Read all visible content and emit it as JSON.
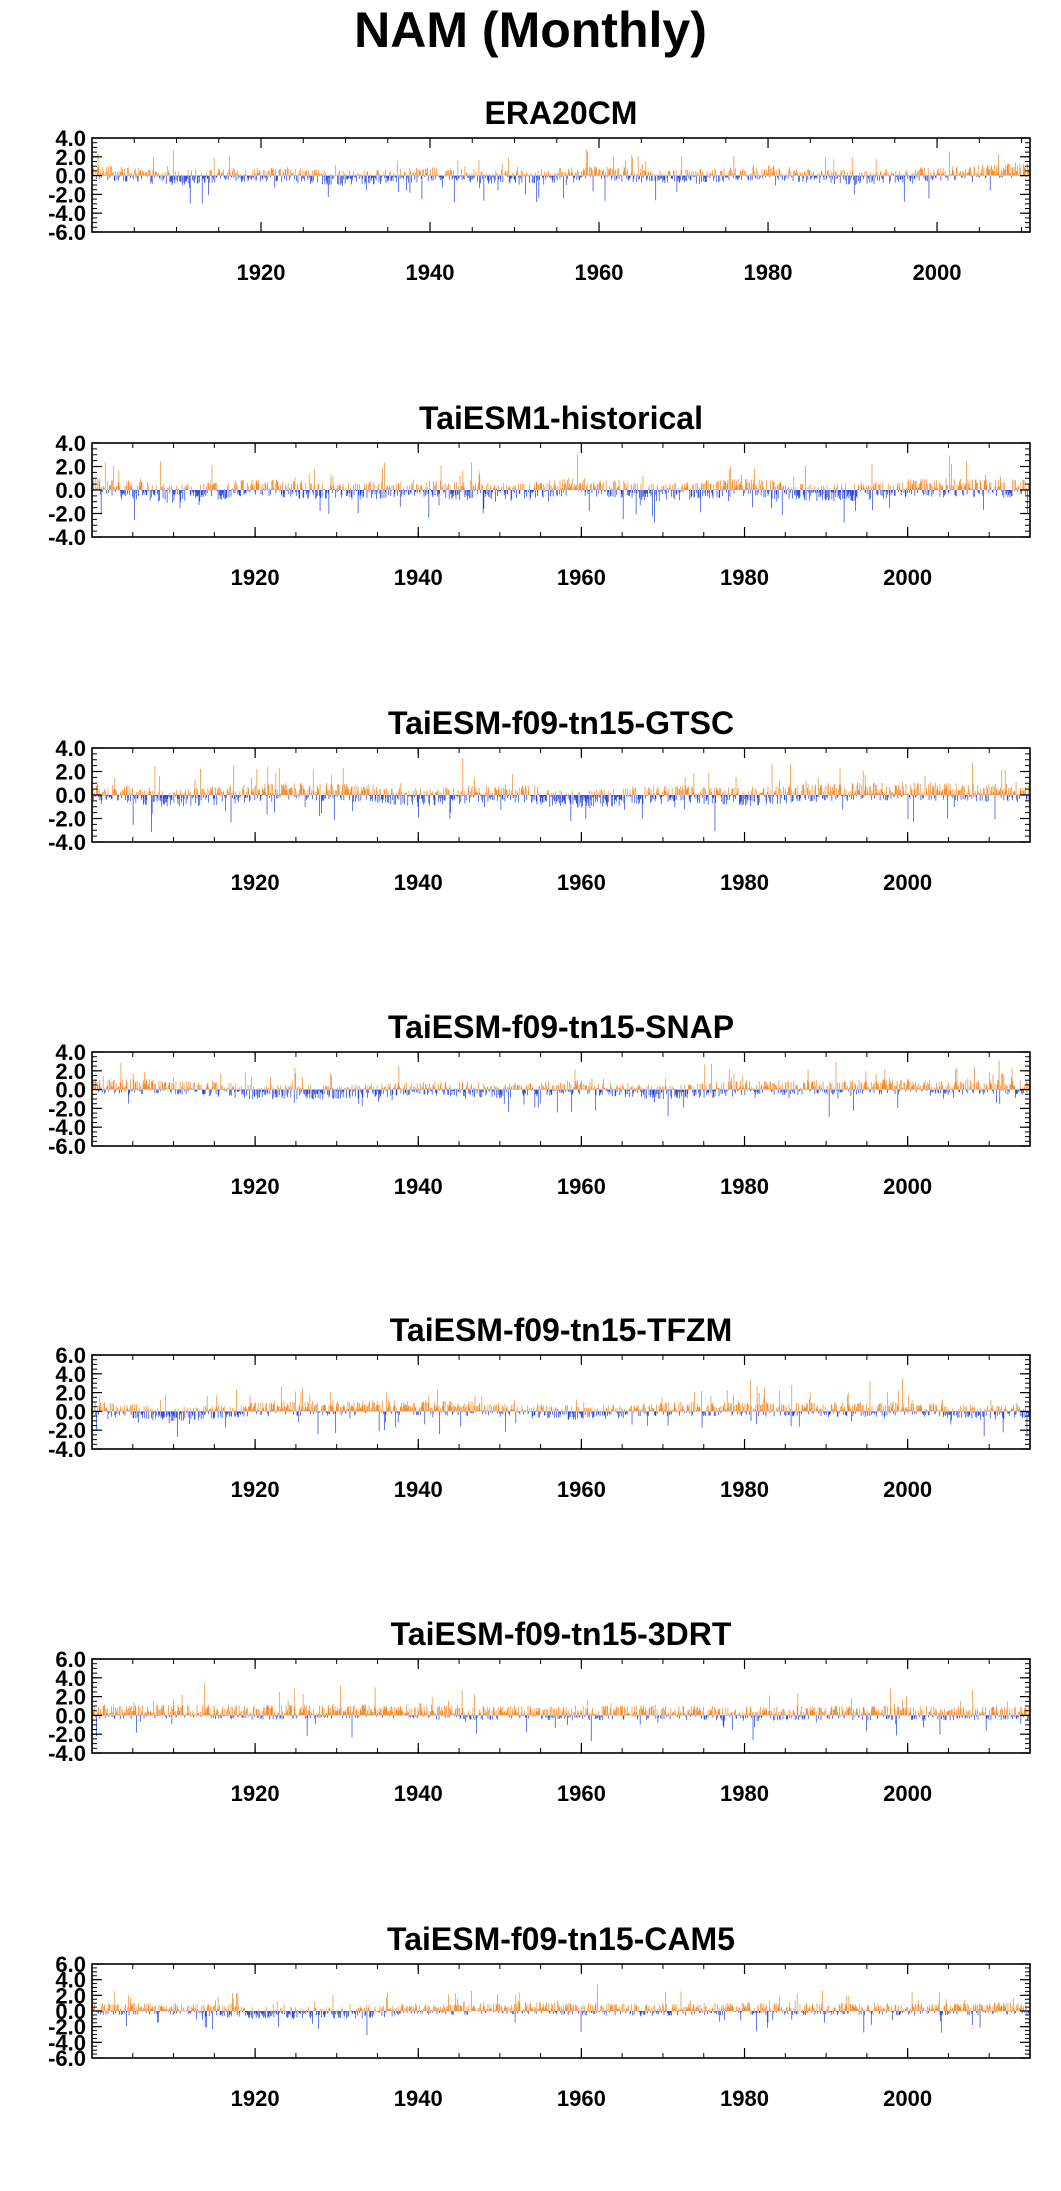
{
  "title": "NAM (Monthly)",
  "colors": {
    "positive": "#f5831f",
    "negative": "#1f3fdc",
    "frame": "#000000",
    "background": "#ffffff"
  },
  "chart_data": [
    {
      "type": "bar",
      "title": "ERA20CM",
      "xlim": [
        1900,
        2011
      ],
      "ylim": [
        -6,
        4
      ],
      "yticks": [
        "4.0",
        "2.0",
        "0.0",
        "-2.0",
        "-4.0",
        "-6.0"
      ],
      "xticks": [
        "1920",
        "1940",
        "1960",
        "1980",
        "2000"
      ],
      "series": [
        {
          "x": [
            1900,
            1910,
            1920,
            1930,
            1940,
            1950,
            1960,
            1970,
            1980,
            1990,
            2000,
            2010
          ],
          "values": [
            0.6,
            -0.4,
            0.3,
            -0.5,
            0.2,
            -0.3,
            0.4,
            -0.2,
            0.5,
            -0.4,
            0.3,
            1.0
          ]
        }
      ]
    },
    {
      "type": "bar",
      "title": "TaiESM1-historical",
      "xlim": [
        1900,
        2015
      ],
      "ylim": [
        -4,
        4
      ],
      "yticks": [
        "4.0",
        "2.0",
        "0.0",
        "-2.0",
        "-4.0"
      ],
      "xticks": [
        "1920",
        "1940",
        "1960",
        "1980",
        "2000"
      ],
      "series": [
        {
          "x": [
            1900,
            1910,
            1920,
            1930,
            1940,
            1950,
            1960,
            1970,
            1980,
            1990,
            2000,
            2010
          ],
          "values": [
            0.5,
            -0.6,
            0.4,
            -0.3,
            0.2,
            -0.4,
            0.5,
            -0.3,
            0.4,
            -0.5,
            0.3,
            0.2
          ]
        }
      ]
    },
    {
      "type": "bar",
      "title": "TaiESM-f09-tn15-GTSC",
      "xlim": [
        1900,
        2015
      ],
      "ylim": [
        -4,
        4
      ],
      "yticks": [
        "4.0",
        "2.0",
        "0.0",
        "-2.0",
        "-4.0"
      ],
      "xticks": [
        "1920",
        "1940",
        "1960",
        "1980",
        "2000"
      ],
      "series": [
        {
          "x": [
            1900,
            1910,
            1920,
            1930,
            1940,
            1950,
            1960,
            1970,
            1980,
            1990,
            2000,
            2010
          ],
          "values": [
            0.4,
            -0.5,
            0.3,
            0.5,
            -0.3,
            0.4,
            -0.6,
            0.2,
            -0.3,
            0.4,
            0.6,
            0.3
          ]
        }
      ]
    },
    {
      "type": "bar",
      "title": "TaiESM-f09-tn15-SNAP",
      "xlim": [
        1900,
        2015
      ],
      "ylim": [
        -6,
        4
      ],
      "yticks": [
        "4.0",
        "2.0",
        "0.0",
        "-2.0",
        "-4.0",
        "-6.0"
      ],
      "xticks": [
        "1920",
        "1940",
        "1960",
        "1980",
        "2000"
      ],
      "series": [
        {
          "x": [
            1900,
            1910,
            1920,
            1930,
            1940,
            1950,
            1960,
            1970,
            1980,
            1990,
            2000,
            2010
          ],
          "values": [
            0.6,
            0.5,
            -0.4,
            -0.5,
            0.3,
            -0.2,
            0.4,
            -0.5,
            0.3,
            0.4,
            0.5,
            0.4
          ]
        }
      ]
    },
    {
      "type": "bar",
      "title": "TaiESM-f09-tn15-TFZM",
      "xlim": [
        1900,
        2015
      ],
      "ylim": [
        -4,
        6
      ],
      "yticks": [
        "6.0",
        "4.0",
        "2.0",
        "0.0",
        "-2.0",
        "-4.0"
      ],
      "xticks": [
        "1920",
        "1940",
        "1960",
        "1980",
        "2000"
      ],
      "series": [
        {
          "x": [
            1900,
            1910,
            1920,
            1930,
            1940,
            1950,
            1960,
            1970,
            1980,
            1990,
            2000,
            2010
          ],
          "values": [
            0.5,
            -0.5,
            0.4,
            0.6,
            0.7,
            0.3,
            -0.3,
            0.4,
            0.5,
            0.3,
            0.4,
            -0.2
          ]
        }
      ]
    },
    {
      "type": "bar",
      "title": "TaiESM-f09-tn15-3DRT",
      "xlim": [
        1900,
        2015
      ],
      "ylim": [
        -4,
        6
      ],
      "yticks": [
        "6.0",
        "4.0",
        "2.0",
        "0.0",
        "-2.0",
        "-4.0"
      ],
      "xticks": [
        "1920",
        "1940",
        "1960",
        "1980",
        "2000"
      ],
      "series": [
        {
          "x": [
            1900,
            1910,
            1920,
            1930,
            1940,
            1950,
            1960,
            1970,
            1980,
            1990,
            2000,
            2010
          ],
          "values": [
            0.6,
            0.7,
            0.5,
            0.8,
            0.6,
            0.5,
            0.4,
            0.6,
            0.3,
            0.5,
            0.4,
            0.4
          ]
        }
      ]
    },
    {
      "type": "bar",
      "title": "TaiESM-f09-tn15-CAM5",
      "xlim": [
        1900,
        2015
      ],
      "ylim": [
        -6,
        6
      ],
      "yticks": [
        "6.0",
        "4.0",
        "2.0",
        "0.0",
        "-2.0",
        "-4.0",
        "-6.0"
      ],
      "xticks": [
        "1920",
        "1940",
        "1960",
        "1980",
        "2000"
      ],
      "series": [
        {
          "x": [
            1900,
            1910,
            1920,
            1930,
            1940,
            1950,
            1960,
            1970,
            1980,
            1990,
            2000,
            2010
          ],
          "values": [
            0.4,
            0.5,
            -0.4,
            -0.5,
            0.3,
            0.7,
            0.4,
            0.3,
            0.5,
            0.4,
            0.3,
            0.5
          ]
        }
      ]
    }
  ]
}
